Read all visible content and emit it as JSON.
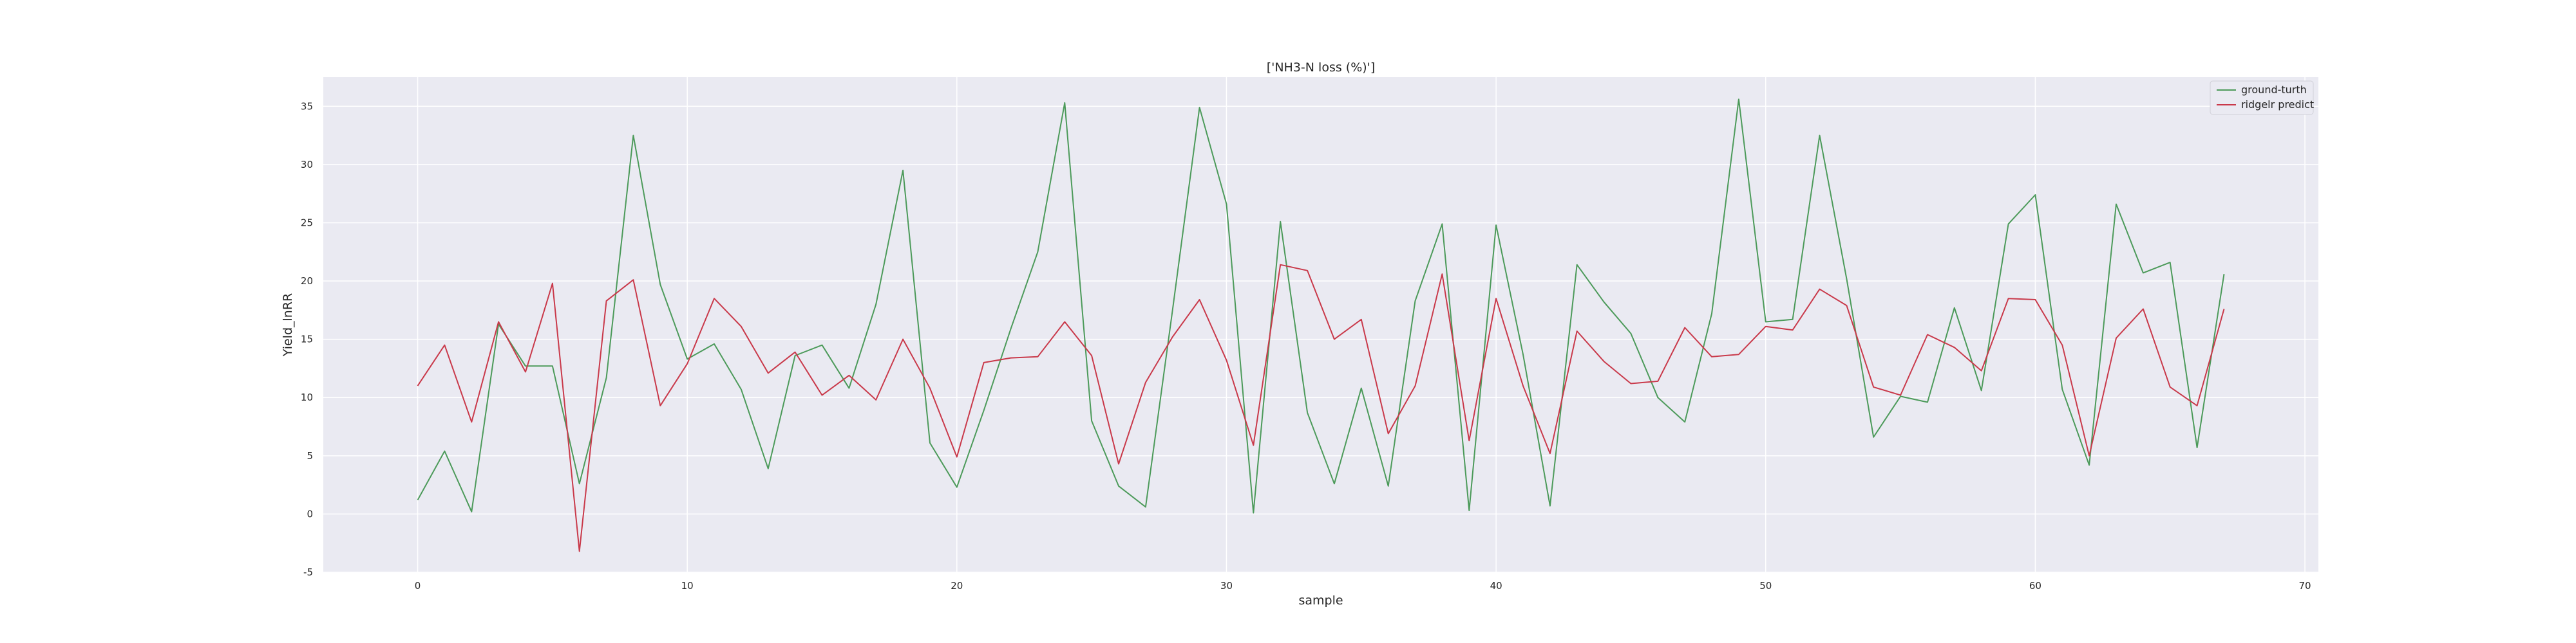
{
  "chart_data": {
    "type": "line",
    "title": "['NH3-N loss (%)']",
    "xlabel": "sample",
    "ylabel": "Yield_lnRR",
    "xlim": [
      -3.5,
      70.5
    ],
    "ylim": [
      -5,
      37.5
    ],
    "xticks": [
      0,
      10,
      20,
      30,
      40,
      50,
      60,
      70
    ],
    "yticks": [
      -5,
      0,
      5,
      10,
      15,
      20,
      25,
      30,
      35
    ],
    "grid": true,
    "legend_position": "top-right",
    "x": [
      0,
      1,
      2,
      3,
      4,
      5,
      6,
      7,
      8,
      9,
      10,
      11,
      12,
      13,
      14,
      15,
      16,
      17,
      18,
      19,
      20,
      21,
      22,
      23,
      24,
      25,
      26,
      27,
      28,
      29,
      30,
      31,
      32,
      33,
      34,
      35,
      36,
      37,
      38,
      39,
      40,
      41,
      42,
      43,
      44,
      45,
      46,
      47,
      48,
      49,
      50,
      51,
      52,
      53,
      54,
      55,
      56,
      57,
      58,
      59,
      60,
      61,
      62,
      63,
      64,
      65,
      66,
      67
    ],
    "series": [
      {
        "name": "ground-turth",
        "color": "#4c9a5a",
        "values": [
          1.2,
          5.4,
          0.2,
          16.3,
          12.7,
          12.7,
          2.6,
          11.7,
          32.5,
          19.7,
          13.3,
          14.6,
          10.7,
          3.9,
          13.6,
          14.5,
          10.8,
          18.0,
          29.5,
          6.1,
          2.3,
          8.9,
          15.9,
          22.5,
          35.3,
          8.0,
          2.4,
          0.6,
          17.5,
          34.9,
          26.6,
          0.1,
          25.1,
          8.7,
          2.6,
          10.8,
          2.4,
          18.3,
          24.9,
          0.3,
          24.8,
          13.7,
          0.7,
          21.4,
          18.2,
          15.5,
          10.0,
          7.9,
          17.2,
          35.6,
          16.5,
          16.7,
          32.5,
          20.2,
          6.6,
          10.1,
          9.6,
          17.7,
          10.6,
          24.9,
          27.4,
          10.7,
          4.2,
          26.6,
          20.7,
          21.6,
          5.7,
          20.6
        ]
      },
      {
        "name": "ridgelr predict",
        "color": "#c9394a",
        "values": [
          11.0,
          14.5,
          7.9,
          16.5,
          12.2,
          19.8,
          -3.2,
          18.3,
          20.1,
          9.3,
          12.9,
          18.5,
          16.1,
          12.1,
          13.9,
          10.2,
          11.9,
          9.8,
          15.0,
          10.8,
          4.9,
          13.0,
          13.4,
          13.5,
          16.5,
          13.6,
          4.3,
          11.3,
          15.2,
          18.4,
          13.2,
          5.9,
          21.4,
          20.9,
          15.0,
          16.7,
          6.9,
          11.0,
          20.6,
          6.3,
          18.5,
          11.0,
          5.2,
          15.7,
          13.1,
          11.2,
          11.4,
          16.0,
          13.5,
          13.7,
          16.1,
          15.8,
          19.3,
          17.9,
          10.9,
          10.2,
          15.4,
          14.3,
          12.3,
          18.5,
          18.4,
          14.5,
          5.0,
          15.1,
          17.6,
          10.9,
          9.3,
          17.6
        ]
      }
    ]
  }
}
